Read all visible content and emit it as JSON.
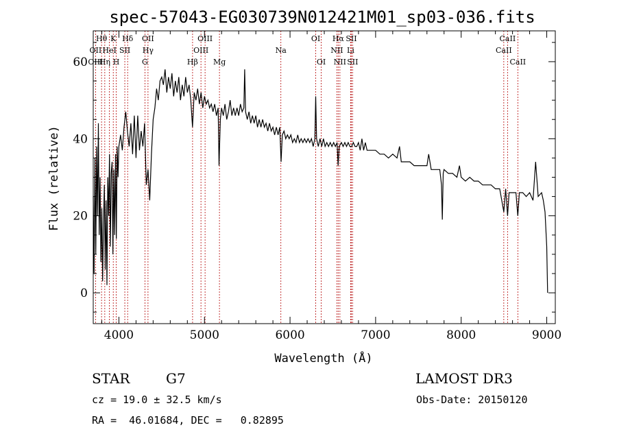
{
  "chart_data": {
    "type": "line",
    "title": "spec-57043-EG030739N012421M01_sp03-036.fits",
    "xlabel": "Wavelength (Å)",
    "ylabel": "Flux (relative)",
    "xlim": [
      3700,
      9100
    ],
    "ylim": [
      -8,
      68
    ],
    "x_ticks": [
      4000,
      5000,
      6000,
      7000,
      8000,
      9000
    ],
    "y_ticks": [
      0,
      20,
      40,
      60
    ],
    "grid": false,
    "series": [
      {
        "points": [
          [
            3700,
            25
          ],
          [
            3710,
            5
          ],
          [
            3720,
            35
          ],
          [
            3730,
            10
          ],
          [
            3740,
            38
          ],
          [
            3750,
            20
          ],
          [
            3760,
            44
          ],
          [
            3770,
            15
          ],
          [
            3780,
            30
          ],
          [
            3790,
            8
          ],
          [
            3800,
            22
          ],
          [
            3810,
            3
          ],
          [
            3820,
            18
          ],
          [
            3830,
            28
          ],
          [
            3840,
            6
          ],
          [
            3850,
            24
          ],
          [
            3860,
            2
          ],
          [
            3870,
            30
          ],
          [
            3880,
            20
          ],
          [
            3890,
            36
          ],
          [
            3900,
            12
          ],
          [
            3910,
            31
          ],
          [
            3920,
            34
          ],
          [
            3930,
            10
          ],
          [
            3940,
            32
          ],
          [
            3950,
            15
          ],
          [
            3960,
            36
          ],
          [
            3970,
            14
          ],
          [
            3980,
            38
          ],
          [
            3990,
            30
          ],
          [
            4000,
            38
          ],
          [
            4020,
            41
          ],
          [
            4040,
            37
          ],
          [
            4060,
            43
          ],
          [
            4080,
            47
          ],
          [
            4100,
            42
          ],
          [
            4120,
            38
          ],
          [
            4140,
            44
          ],
          [
            4160,
            36
          ],
          [
            4180,
            46
          ],
          [
            4200,
            35
          ],
          [
            4220,
            46
          ],
          [
            4240,
            37
          ],
          [
            4260,
            42
          ],
          [
            4280,
            38
          ],
          [
            4300,
            44
          ],
          [
            4320,
            28
          ],
          [
            4340,
            32
          ],
          [
            4360,
            24
          ],
          [
            4380,
            36
          ],
          [
            4400,
            45
          ],
          [
            4420,
            48
          ],
          [
            4440,
            53
          ],
          [
            4460,
            50
          ],
          [
            4480,
            55
          ],
          [
            4500,
            56
          ],
          [
            4520,
            54
          ],
          [
            4540,
            58
          ],
          [
            4560,
            52
          ],
          [
            4580,
            56
          ],
          [
            4600,
            53
          ],
          [
            4620,
            57
          ],
          [
            4640,
            51
          ],
          [
            4660,
            55
          ],
          [
            4680,
            52
          ],
          [
            4700,
            56
          ],
          [
            4720,
            50
          ],
          [
            4740,
            54
          ],
          [
            4760,
            51
          ],
          [
            4780,
            56
          ],
          [
            4800,
            52
          ],
          [
            4820,
            54
          ],
          [
            4840,
            50
          ],
          [
            4860,
            43
          ],
          [
            4880,
            52
          ],
          [
            4900,
            50
          ],
          [
            4920,
            53
          ],
          [
            4940,
            49
          ],
          [
            4960,
            52
          ],
          [
            4980,
            48
          ],
          [
            5000,
            51
          ],
          [
            5020,
            49
          ],
          [
            5040,
            50
          ],
          [
            5060,
            48
          ],
          [
            5080,
            49
          ],
          [
            5100,
            47
          ],
          [
            5120,
            49
          ],
          [
            5140,
            46
          ],
          [
            5160,
            48
          ],
          [
            5170,
            33
          ],
          [
            5185,
            45
          ],
          [
            5200,
            48
          ],
          [
            5220,
            46
          ],
          [
            5240,
            49
          ],
          [
            5260,
            45
          ],
          [
            5280,
            47
          ],
          [
            5300,
            50
          ],
          [
            5320,
            46
          ],
          [
            5340,
            48
          ],
          [
            5360,
            46
          ],
          [
            5380,
            48
          ],
          [
            5400,
            46
          ],
          [
            5420,
            49
          ],
          [
            5440,
            47
          ],
          [
            5460,
            48
          ],
          [
            5470,
            58
          ],
          [
            5480,
            47
          ],
          [
            5500,
            45
          ],
          [
            5520,
            47
          ],
          [
            5540,
            44
          ],
          [
            5560,
            46
          ],
          [
            5580,
            44
          ],
          [
            5600,
            46
          ],
          [
            5620,
            43
          ],
          [
            5640,
            45
          ],
          [
            5660,
            43
          ],
          [
            5680,
            45
          ],
          [
            5700,
            43
          ],
          [
            5720,
            44
          ],
          [
            5740,
            42
          ],
          [
            5760,
            44
          ],
          [
            5780,
            42
          ],
          [
            5800,
            43
          ],
          [
            5820,
            41
          ],
          [
            5840,
            43
          ],
          [
            5860,
            41
          ],
          [
            5880,
            43
          ],
          [
            5895,
            34
          ],
          [
            5910,
            41
          ],
          [
            5930,
            42
          ],
          [
            5950,
            40
          ],
          [
            5970,
            41
          ],
          [
            5990,
            40
          ],
          [
            6010,
            41
          ],
          [
            6030,
            39
          ],
          [
            6050,
            40
          ],
          [
            6070,
            39
          ],
          [
            6090,
            41
          ],
          [
            6110,
            39
          ],
          [
            6130,
            40
          ],
          [
            6150,
            39
          ],
          [
            6170,
            40
          ],
          [
            6190,
            39
          ],
          [
            6210,
            40
          ],
          [
            6230,
            39
          ],
          [
            6250,
            40
          ],
          [
            6270,
            38
          ],
          [
            6290,
            40
          ],
          [
            6300,
            51
          ],
          [
            6310,
            40
          ],
          [
            6330,
            38
          ],
          [
            6350,
            40
          ],
          [
            6370,
            38
          ],
          [
            6390,
            40
          ],
          [
            6410,
            38
          ],
          [
            6430,
            39
          ],
          [
            6450,
            38
          ],
          [
            6470,
            39
          ],
          [
            6490,
            38
          ],
          [
            6510,
            39
          ],
          [
            6530,
            38
          ],
          [
            6550,
            39
          ],
          [
            6562,
            33
          ],
          [
            6575,
            38
          ],
          [
            6600,
            39
          ],
          [
            6620,
            38
          ],
          [
            6640,
            39
          ],
          [
            6660,
            38
          ],
          [
            6680,
            39
          ],
          [
            6700,
            38
          ],
          [
            6720,
            38
          ],
          [
            6740,
            39
          ],
          [
            6760,
            38
          ],
          [
            6780,
            38
          ],
          [
            6800,
            39
          ],
          [
            6820,
            37
          ],
          [
            6840,
            40
          ],
          [
            6860,
            37
          ],
          [
            6880,
            39
          ],
          [
            6900,
            37
          ],
          [
            6950,
            37
          ],
          [
            7000,
            37
          ],
          [
            7050,
            36
          ],
          [
            7100,
            36
          ],
          [
            7150,
            35
          ],
          [
            7200,
            36
          ],
          [
            7250,
            35
          ],
          [
            7280,
            38
          ],
          [
            7300,
            34
          ],
          [
            7350,
            34
          ],
          [
            7400,
            34
          ],
          [
            7450,
            33
          ],
          [
            7500,
            33
          ],
          [
            7550,
            33
          ],
          [
            7600,
            33
          ],
          [
            7620,
            36
          ],
          [
            7650,
            32
          ],
          [
            7700,
            32
          ],
          [
            7750,
            32
          ],
          [
            7770,
            28
          ],
          [
            7780,
            19
          ],
          [
            7790,
            31
          ],
          [
            7800,
            32
          ],
          [
            7850,
            31
          ],
          [
            7900,
            31
          ],
          [
            7950,
            30
          ],
          [
            7980,
            33
          ],
          [
            8000,
            30
          ],
          [
            8050,
            29
          ],
          [
            8100,
            30
          ],
          [
            8150,
            29
          ],
          [
            8200,
            29
          ],
          [
            8250,
            28
          ],
          [
            8300,
            28
          ],
          [
            8350,
            28
          ],
          [
            8400,
            27
          ],
          [
            8450,
            27
          ],
          [
            8498,
            21
          ],
          [
            8520,
            27
          ],
          [
            8542,
            20
          ],
          [
            8560,
            26
          ],
          [
            8600,
            26
          ],
          [
            8640,
            26
          ],
          [
            8662,
            20
          ],
          [
            8680,
            26
          ],
          [
            8720,
            26
          ],
          [
            8760,
            25
          ],
          [
            8800,
            26
          ],
          [
            8840,
            24
          ],
          [
            8870,
            34
          ],
          [
            8900,
            25
          ],
          [
            8940,
            26
          ],
          [
            8960,
            24
          ],
          [
            8980,
            21
          ],
          [
            9000,
            12
          ],
          [
            9010,
            0
          ]
        ]
      }
    ],
    "spectral_lines": [
      {
        "label": "Hθ",
        "x": 3797,
        "row": 0
      },
      {
        "label": "OII",
        "x": 3727,
        "row": 1
      },
      {
        "label": "OIII",
        "x": 3727,
        "row": 2
      },
      {
        "label": "Hη",
        "x": 3835,
        "row": 2
      },
      {
        "label": "K",
        "x": 3934,
        "row": 0
      },
      {
        "label": "HeI",
        "x": 3889,
        "row": 1
      },
      {
        "label": "H",
        "x": 3969,
        "row": 2
      },
      {
        "label": "Hδ",
        "x": 4102,
        "row": 0
      },
      {
        "label": "SII",
        "x": 4069,
        "row": 1
      },
      {
        "label": "OII",
        "x": 4340,
        "row": 0
      },
      {
        "label": "Hγ",
        "x": 4340,
        "row": 1
      },
      {
        "label": "G",
        "x": 4304,
        "row": 2
      },
      {
        "label": "OIII",
        "x": 5007,
        "row": 0
      },
      {
        "label": "OIII",
        "x": 4959,
        "row": 1
      },
      {
        "label": "Hβ",
        "x": 4861,
        "row": 2
      },
      {
        "label": "Mg",
        "x": 5175,
        "row": 2
      },
      {
        "label": "Na",
        "x": 5893,
        "row": 1
      },
      {
        "label": "OI",
        "x": 6300,
        "row": 0
      },
      {
        "label": "OI",
        "x": 6364,
        "row": 2
      },
      {
        "label": "Hα",
        "x": 6563,
        "row": 0
      },
      {
        "label": "SII",
        "x": 6716,
        "row": 0
      },
      {
        "label": "NII",
        "x": 6548,
        "row": 1
      },
      {
        "label": "Li",
        "x": 6708,
        "row": 1
      },
      {
        "label": "NII",
        "x": 6583,
        "row": 2
      },
      {
        "label": "SII",
        "x": 6731,
        "row": 2
      },
      {
        "label": "CaII",
        "x": 8542,
        "row": 0
      },
      {
        "label": "CaII",
        "x": 8498,
        "row": 1
      },
      {
        "label": "CaII",
        "x": 8662,
        "row": 2
      }
    ],
    "colors": {
      "spectrum": "#000000",
      "line_markers": "#b30000",
      "axes": "#000000"
    }
  },
  "info": {
    "class": "STAR",
    "subclass": "G7",
    "survey": "LAMOST DR3",
    "cz": "cz = 19.0 ± 32.5 km/s",
    "obs_date": "Obs-Date: 20150120",
    "radec": "RA =  46.01684, DEC =   0.82895"
  }
}
